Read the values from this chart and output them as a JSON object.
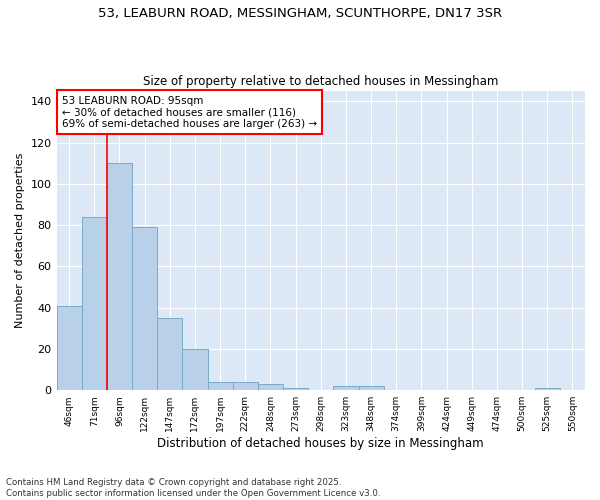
{
  "title_line1": "53, LEABURN ROAD, MESSINGHAM, SCUNTHORPE, DN17 3SR",
  "title_line2": "Size of property relative to detached houses in Messingham",
  "xlabel": "Distribution of detached houses by size in Messingham",
  "ylabel": "Number of detached properties",
  "categories": [
    "46sqm",
    "71sqm",
    "96sqm",
    "122sqm",
    "147sqm",
    "172sqm",
    "197sqm",
    "222sqm",
    "248sqm",
    "273sqm",
    "298sqm",
    "323sqm",
    "348sqm",
    "374sqm",
    "399sqm",
    "424sqm",
    "449sqm",
    "474sqm",
    "500sqm",
    "525sqm",
    "550sqm"
  ],
  "values": [
    41,
    84,
    110,
    79,
    35,
    20,
    4,
    4,
    3,
    1,
    0,
    2,
    2,
    0,
    0,
    0,
    0,
    0,
    0,
    1,
    0
  ],
  "bar_color": "#b8d0e8",
  "bar_edge_color": "#7aaac8",
  "plot_bg_color": "#dce8f5",
  "fig_bg_color": "#ffffff",
  "grid_color": "#ffffff",
  "ylim": [
    0,
    145
  ],
  "yticks": [
    0,
    20,
    40,
    60,
    80,
    100,
    120,
    140
  ],
  "annotation_box_text": "53 LEABURN ROAD: 95sqm\n← 30% of detached houses are smaller (116)\n69% of semi-detached houses are larger (263) →",
  "red_line_x": 1.5,
  "footer_line1": "Contains HM Land Registry data © Crown copyright and database right 2025.",
  "footer_line2": "Contains public sector information licensed under the Open Government Licence v3.0."
}
